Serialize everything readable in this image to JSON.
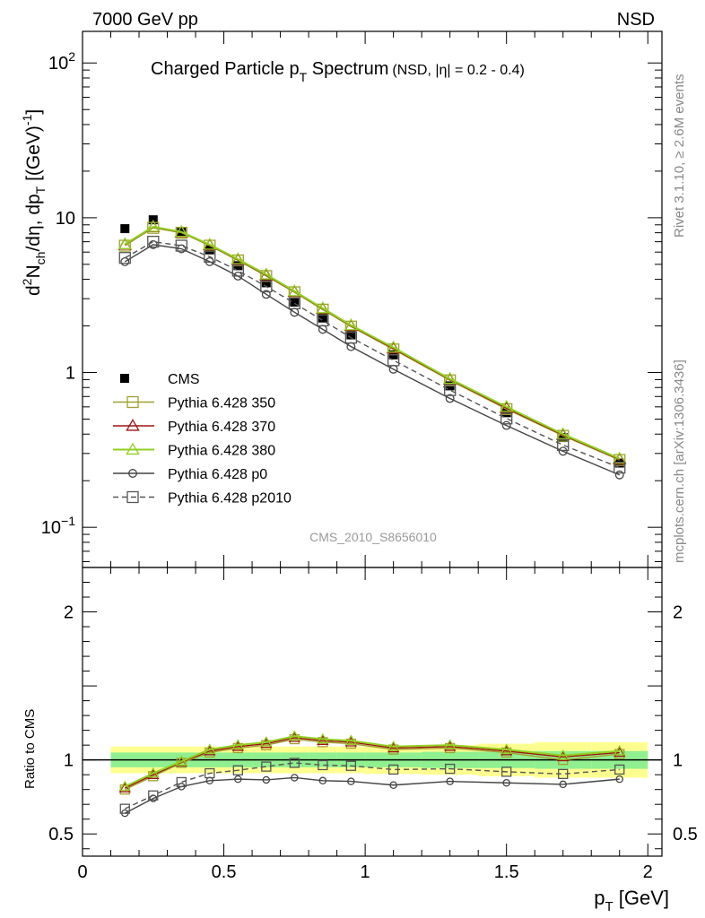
{
  "header": {
    "left": "7000 GeV pp",
    "right": "NSD"
  },
  "side_labels": {
    "rivet": "Rivet 3.1.10, ≥ 2.6M events",
    "mcplots": "mcplots.cern.ch [arXiv:1306.3436]"
  },
  "colors": {
    "cms": "#000000",
    "p350": "#a0a030",
    "p370": "#a01010",
    "p380": "#90d020",
    "p0": "#444444",
    "p2010": "#555555",
    "band_inner": "#90f090",
    "band_outer": "#ffff90"
  },
  "chart_data": [
    {
      "type": "scatter",
      "name": "main",
      "title": "Charged Particle p",
      "title_sub": "T",
      "title_suffix": " Spectrum",
      "title_note": "(NSD, |η| = 0.2 - 0.4)",
      "ylabel": "d²N/dη, dp_T [(GeV)⁻¹]",
      "ylabel_parts": {
        "d": "d",
        "sup2": "2",
        "N": "N",
        "ch": "ch",
        "mid": "/dη, dp",
        "T": "T",
        "unit": " [(GeV)",
        "neg1": "-1",
        "close": "]"
      },
      "yscale": "log",
      "xlim": [
        0,
        2.05
      ],
      "ylim": [
        0.055,
        160
      ],
      "yticks": [
        {
          "v": 0.1,
          "base": "10",
          "exp": "−1"
        },
        {
          "v": 1,
          "label": "1"
        },
        {
          "v": 10,
          "label": "10"
        },
        {
          "v": 100,
          "base": "10",
          "exp": "2"
        }
      ],
      "watermark": "CMS_2010_S8656010",
      "x": [
        0.15,
        0.25,
        0.35,
        0.45,
        0.55,
        0.65,
        0.75,
        0.85,
        0.95,
        1.1,
        1.3,
        1.5,
        1.7,
        1.9
      ],
      "series": [
        {
          "name": "CMS",
          "key": "cms",
          "marker": "filled-square",
          "line": "none",
          "values": [
            8.5,
            9.7,
            8.1,
            6.2,
            4.9,
            3.8,
            2.85,
            2.25,
            1.75,
            1.3,
            0.82,
            0.55,
            0.38,
            0.26
          ]
        },
        {
          "name": "Pythia 6.428 350",
          "key": "p350",
          "marker": "open-square",
          "line": "solid",
          "values": [
            6.6,
            8.6,
            8.0,
            6.6,
            5.3,
            4.2,
            3.3,
            2.55,
            1.98,
            1.41,
            0.89,
            0.58,
            0.39,
            0.272
          ]
        },
        {
          "name": "Pythia 6.428 370",
          "key": "p370",
          "marker": "open-triangle",
          "line": "solid",
          "values": [
            6.7,
            8.7,
            8.05,
            6.65,
            5.35,
            4.25,
            3.32,
            2.58,
            2.0,
            1.43,
            0.9,
            0.59,
            0.395,
            0.275
          ]
        },
        {
          "name": "Pythia 6.428 380",
          "key": "p380",
          "marker": "open-triangle",
          "line": "solid",
          "values": [
            6.75,
            8.75,
            8.1,
            6.7,
            5.4,
            4.3,
            3.35,
            2.6,
            2.02,
            1.45,
            0.91,
            0.6,
            0.4,
            0.278
          ]
        },
        {
          "name": "Pythia 6.428 p0",
          "key": "p0",
          "marker": "open-circle",
          "line": "solid",
          "values": [
            5.2,
            6.7,
            6.3,
            5.2,
            4.2,
            3.2,
            2.45,
            1.9,
            1.47,
            1.05,
            0.68,
            0.455,
            0.31,
            0.218
          ]
        },
        {
          "name": "Pythia 6.428 p2010",
          "key": "p2010",
          "marker": "open-square",
          "line": "dashed",
          "values": [
            5.5,
            7.0,
            6.6,
            5.6,
            4.55,
            3.6,
            2.8,
            2.17,
            1.68,
            1.2,
            0.77,
            0.505,
            0.34,
            0.243
          ]
        }
      ],
      "legend": "left"
    },
    {
      "type": "line",
      "name": "ratio",
      "ylabel": "Ratio to CMS",
      "xlabel": "p",
      "xlabel_sub": "T",
      "xlabel_unit": " [GeV]",
      "xlim": [
        0,
        2.05
      ],
      "ylim": [
        0.35,
        2.3
      ],
      "xticks": [
        {
          "v": 0,
          "label": "0"
        },
        {
          "v": 0.5,
          "label": "0.5"
        },
        {
          "v": 1,
          "label": "1"
        },
        {
          "v": 1.5,
          "label": "1.5"
        },
        {
          "v": 2,
          "label": "2"
        }
      ],
      "yticks": [
        {
          "v": 0.5,
          "label": "0.5"
        },
        {
          "v": 1,
          "label": "1"
        },
        {
          "v": 2,
          "label": "2"
        }
      ],
      "x": [
        0.15,
        0.25,
        0.35,
        0.45,
        0.55,
        0.65,
        0.75,
        0.85,
        0.95,
        1.1,
        1.3,
        1.5,
        1.7,
        1.9
      ],
      "band_edges": [
        0.1,
        0.2,
        0.3,
        0.4,
        0.5,
        0.6,
        0.7,
        0.8,
        0.9,
        1.0,
        1.2,
        1.4,
        1.6,
        1.8,
        2.0
      ],
      "band_inner_halfwidth": [
        0.05,
        0.05,
        0.05,
        0.05,
        0.05,
        0.05,
        0.05,
        0.05,
        0.05,
        0.05,
        0.055,
        0.055,
        0.06,
        0.06
      ],
      "band_outer_halfwidth": [
        0.09,
        0.09,
        0.09,
        0.09,
        0.09,
        0.09,
        0.09,
        0.09,
        0.09,
        0.095,
        0.1,
        0.11,
        0.12,
        0.12
      ],
      "series": [
        {
          "key": "p350",
          "marker": "open-square",
          "line": "solid",
          "values": [
            0.8,
            0.89,
            0.98,
            1.05,
            1.08,
            1.1,
            1.14,
            1.12,
            1.11,
            1.07,
            1.08,
            1.05,
            1.0,
            1.04
          ]
        },
        {
          "key": "p370",
          "marker": "open-triangle",
          "line": "solid",
          "values": [
            0.81,
            0.9,
            0.985,
            1.06,
            1.09,
            1.11,
            1.15,
            1.13,
            1.12,
            1.08,
            1.09,
            1.06,
            1.02,
            1.05
          ]
        },
        {
          "key": "p380",
          "marker": "open-triangle",
          "line": "solid",
          "values": [
            0.82,
            0.91,
            0.99,
            1.07,
            1.1,
            1.12,
            1.16,
            1.14,
            1.13,
            1.09,
            1.1,
            1.07,
            1.03,
            1.06
          ]
        },
        {
          "key": "p0",
          "marker": "open-circle",
          "line": "solid",
          "values": [
            0.64,
            0.74,
            0.82,
            0.86,
            0.87,
            0.865,
            0.88,
            0.86,
            0.855,
            0.83,
            0.855,
            0.845,
            0.835,
            0.87
          ]
        },
        {
          "key": "p2010",
          "marker": "open-square",
          "line": "dashed",
          "values": [
            0.67,
            0.76,
            0.85,
            0.91,
            0.93,
            0.955,
            0.98,
            0.965,
            0.96,
            0.935,
            0.94,
            0.92,
            0.905,
            0.935
          ]
        }
      ]
    }
  ]
}
